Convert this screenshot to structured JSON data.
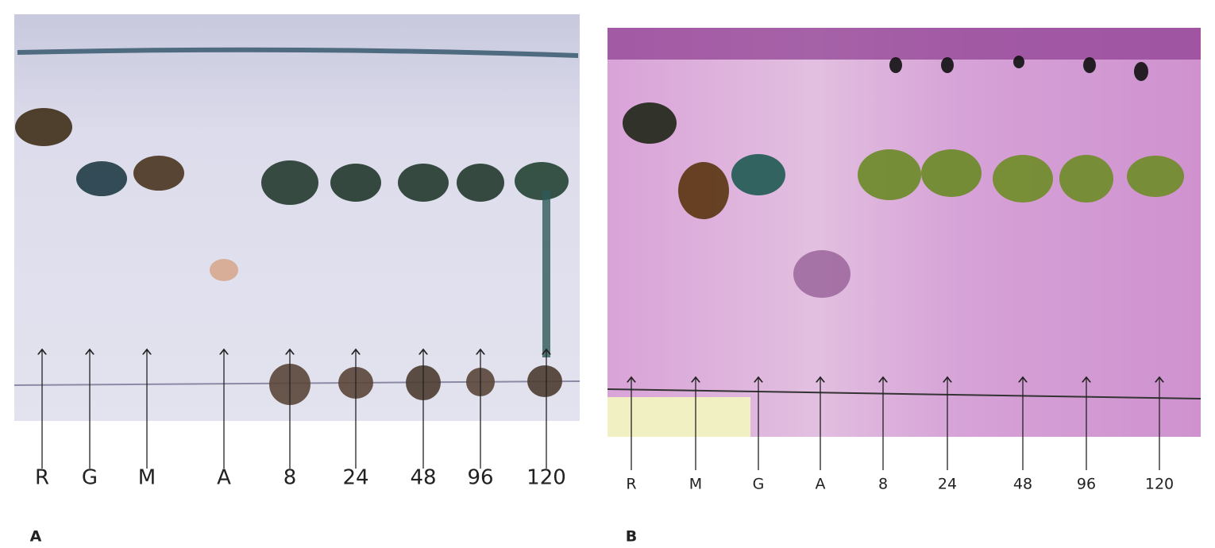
{
  "panels": [
    {
      "label": "A",
      "lanes": [
        "R",
        "G",
        "M",
        "A",
        "8",
        "24",
        "48",
        "96",
        "120"
      ]
    },
    {
      "label": "B",
      "lanes": [
        "R",
        "M",
        "G",
        "A",
        "8",
        "24",
        "48",
        "96",
        "120"
      ]
    }
  ]
}
